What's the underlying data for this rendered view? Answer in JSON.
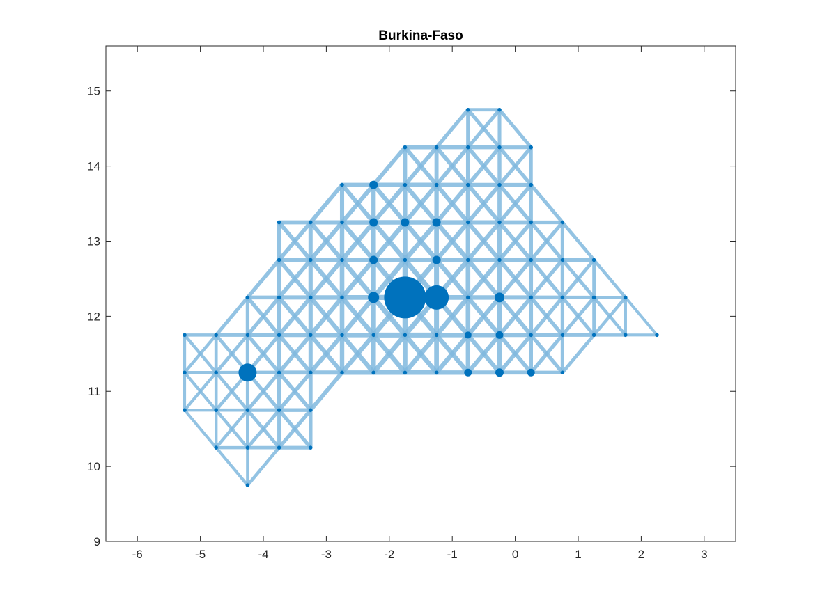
{
  "chart_data": {
    "type": "network",
    "title": "Burkina-Faso",
    "xlabel": "",
    "ylabel": "",
    "xlim": [
      -6.5,
      3.5
    ],
    "ylim": [
      9.0,
      15.6
    ],
    "xticks": [
      -6,
      -5,
      -4,
      -3,
      -2,
      -1,
      0,
      1,
      2,
      3
    ],
    "yticks": [
      9,
      10,
      11,
      12,
      13,
      14,
      15
    ],
    "grid": false,
    "color": "#0072BD",
    "edge_color": "#80B9DE",
    "rows": [
      {
        "y": 14.75,
        "x": [
          -0.75,
          -0.25
        ]
      },
      {
        "y": 14.25,
        "x": [
          -1.75,
          -1.25,
          -0.75,
          -0.25,
          0.25
        ]
      },
      {
        "y": 13.75,
        "x": [
          -2.75,
          -2.25,
          -1.75,
          -1.25,
          -0.75,
          -0.25,
          0.25
        ]
      },
      {
        "y": 13.25,
        "x": [
          -3.75,
          -3.25,
          -2.75,
          -2.25,
          -1.75,
          -1.25,
          -0.75,
          -0.25,
          0.25,
          0.75
        ]
      },
      {
        "y": 12.75,
        "x": [
          -3.75,
          -3.25,
          -2.75,
          -2.25,
          -1.75,
          -1.25,
          -0.75,
          -0.25,
          0.25,
          0.75,
          1.25
        ]
      },
      {
        "y": 12.25,
        "x": [
          -4.25,
          -3.75,
          -3.25,
          -2.75,
          -2.25,
          -1.75,
          -1.25,
          -0.75,
          -0.25,
          0.25,
          0.75,
          1.25,
          1.75
        ]
      },
      {
        "y": 11.75,
        "x": [
          -5.25,
          -4.75,
          -4.25,
          -3.75,
          -3.25,
          -2.75,
          -2.25,
          -1.75,
          -1.25,
          -0.75,
          -0.25,
          0.25,
          0.75,
          1.25,
          1.75,
          2.25
        ]
      },
      {
        "y": 11.25,
        "x": [
          -5.25,
          -4.75,
          -4.25,
          -3.75,
          -3.25,
          -2.75,
          -2.25,
          -1.75,
          -1.25,
          -0.75,
          -0.25,
          0.25,
          0.75
        ]
      },
      {
        "y": 10.75,
        "x": [
          -5.25,
          -4.75,
          -4.25,
          -3.75,
          -3.25
        ]
      },
      {
        "y": 10.25,
        "x": [
          -4.75,
          -4.25,
          -3.75,
          -3.25
        ]
      },
      {
        "y": 9.75,
        "x": [
          -4.25
        ]
      }
    ],
    "large_nodes": [
      {
        "x": -1.75,
        "y": 12.25,
        "size": 6
      },
      {
        "x": -1.25,
        "y": 12.25,
        "size": 3.5
      },
      {
        "x": -4.25,
        "y": 11.25,
        "size": 2.6
      },
      {
        "x": -2.25,
        "y": 12.25,
        "size": 1.6
      },
      {
        "x": -0.25,
        "y": 12.25,
        "size": 1.4
      },
      {
        "x": -2.25,
        "y": 13.75,
        "size": 1.2
      },
      {
        "x": -2.25,
        "y": 13.25,
        "size": 1.2
      },
      {
        "x": -1.75,
        "y": 13.25,
        "size": 1.2
      },
      {
        "x": -1.25,
        "y": 13.25,
        "size": 1.2
      },
      {
        "x": -1.25,
        "y": 12.75,
        "size": 1.2
      },
      {
        "x": -2.25,
        "y": 12.75,
        "size": 1.2
      },
      {
        "x": -0.75,
        "y": 11.25,
        "size": 1.1
      },
      {
        "x": -0.25,
        "y": 11.25,
        "size": 1.2
      },
      {
        "x": 0.25,
        "y": 11.25,
        "size": 1.1
      },
      {
        "x": -0.25,
        "y": 11.75,
        "size": 1.1
      },
      {
        "x": -0.75,
        "y": 11.75,
        "size": 1.0
      }
    ]
  }
}
